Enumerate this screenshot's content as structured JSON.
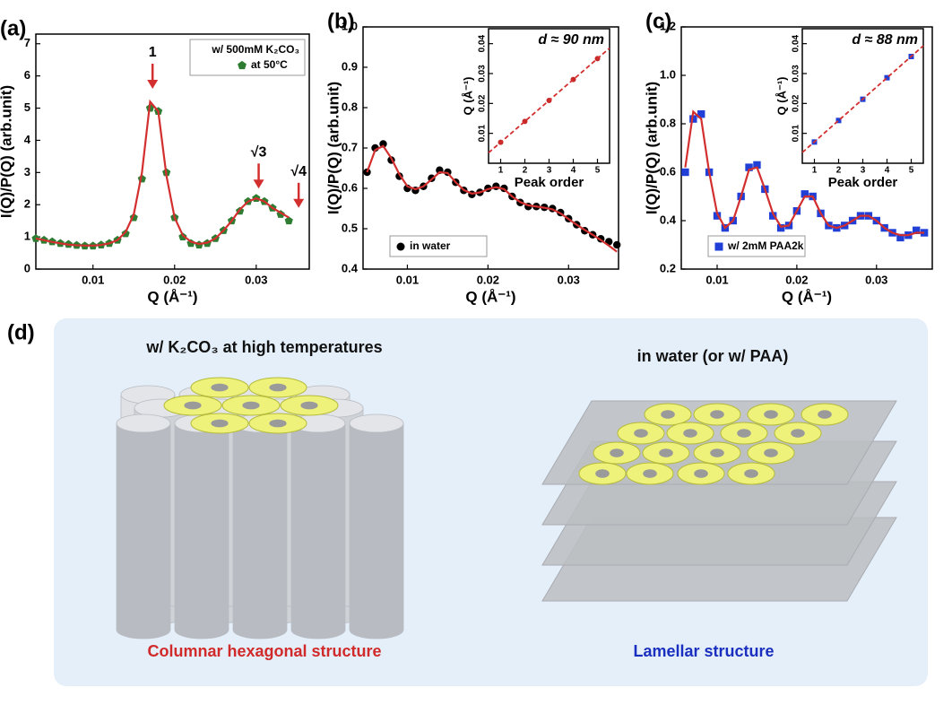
{
  "chart_data": [
    {
      "type": "scatter",
      "label": "(a)",
      "xlabel": "Q (Å⁻¹)",
      "ylabel": "I(Q)/P(Q) (arb.unit)",
      "xlim": [
        0.003,
        0.0365
      ],
      "xticks": [
        0.01,
        0.02,
        0.03
      ],
      "ylim": [
        0,
        7.3
      ],
      "yticks": [
        0,
        1,
        2,
        3,
        4,
        5,
        6,
        7
      ],
      "legend_title": "w/ 500mM K₂CO₃",
      "legend": "upper right",
      "x": [
        0.003,
        0.004,
        0.005,
        0.006,
        0.007,
        0.008,
        0.009,
        0.01,
        0.011,
        0.012,
        0.013,
        0.014,
        0.015,
        0.016,
        0.017,
        0.018,
        0.019,
        0.02,
        0.021,
        0.022,
        0.023,
        0.024,
        0.025,
        0.026,
        0.027,
        0.028,
        0.029,
        0.03,
        0.031,
        0.032,
        0.033,
        0.034
      ],
      "series": [
        {
          "name": "at 50°C",
          "color": "#2e7d32",
          "marker": "pentagon",
          "values": [
            0.95,
            0.9,
            0.85,
            0.8,
            0.77,
            0.74,
            0.72,
            0.72,
            0.75,
            0.8,
            0.9,
            1.1,
            1.6,
            2.8,
            5.0,
            4.9,
            3.0,
            1.6,
            1.0,
            0.8,
            0.75,
            0.8,
            0.95,
            1.2,
            1.5,
            1.8,
            2.1,
            2.2,
            2.1,
            1.9,
            1.7,
            1.5
          ]
        },
        {
          "color": "#d32f2f",
          "style": "line",
          "values": [
            0.95,
            0.9,
            0.84,
            0.8,
            0.76,
            0.74,
            0.73,
            0.73,
            0.75,
            0.8,
            0.9,
            1.15,
            1.7,
            3.0,
            5.2,
            4.9,
            2.9,
            1.6,
            1.05,
            0.85,
            0.78,
            0.82,
            0.95,
            1.2,
            1.5,
            1.85,
            2.1,
            2.2,
            2.1,
            1.9,
            1.75,
            1.6
          ]
        }
      ],
      "annotation_color": "#d32f2f",
      "annotations": [
        {
          "text": "1",
          "x": 0.0173,
          "y": 5.6
        },
        {
          "text": "√3",
          "x": 0.0303,
          "y": 2.5
        },
        {
          "text": "√4",
          "x": 0.0352,
          "y": 1.9
        }
      ]
    },
    {
      "type": "scatter",
      "label": "(b)",
      "xlabel": "Q (Å⁻¹)",
      "ylabel": "I(Q)/P(Q) (arb.unit)",
      "xlim": [
        0.0045,
        0.0362
      ],
      "xticks": [
        0.01,
        0.02,
        0.03
      ],
      "ylim": [
        0.4,
        1.0
      ],
      "yticks": [
        0.4,
        0.5,
        0.6,
        0.7,
        0.8,
        0.9,
        {
          "value": 1,
          "label": "1.0"
        }
      ],
      "legend": "lower left",
      "x": [
        0.005,
        0.006,
        0.007,
        0.008,
        0.009,
        0.01,
        0.011,
        0.012,
        0.013,
        0.014,
        0.015,
        0.016,
        0.017,
        0.018,
        0.019,
        0.02,
        0.021,
        0.022,
        0.023,
        0.024,
        0.025,
        0.026,
        0.027,
        0.028,
        0.029,
        0.03,
        0.031,
        0.032,
        0.033,
        0.034,
        0.035,
        0.036
      ],
      "series": [
        {
          "name": "in water",
          "color": "#000000",
          "marker": "circle",
          "values": [
            0.64,
            0.7,
            0.71,
            0.67,
            0.63,
            0.6,
            0.595,
            0.605,
            0.625,
            0.645,
            0.64,
            0.615,
            0.595,
            0.585,
            0.59,
            0.6,
            0.605,
            0.6,
            0.58,
            0.565,
            0.555,
            0.555,
            0.553,
            0.55,
            0.54,
            0.525,
            0.51,
            0.495,
            0.485,
            0.475,
            0.468,
            0.46
          ]
        },
        {
          "color": "#d32f2f",
          "style": "line",
          "values": [
            0.64,
            0.695,
            0.705,
            0.675,
            0.635,
            0.605,
            0.598,
            0.605,
            0.622,
            0.64,
            0.638,
            0.615,
            0.596,
            0.587,
            0.59,
            0.598,
            0.603,
            0.598,
            0.58,
            0.566,
            0.558,
            0.555,
            0.552,
            0.548,
            0.538,
            0.524,
            0.51,
            0.497,
            0.485,
            0.472,
            0.458,
            0.443
          ]
        }
      ]
    },
    {
      "type": "scatter",
      "inset": true,
      "title": "d ≈ 90 nm",
      "xlabel": "Peak order",
      "ylabel": "Q (Å⁻¹)",
      "xlim": [
        0.5,
        5.5
      ],
      "xticks": [
        1,
        2,
        3,
        4,
        5
      ],
      "ylim": [
        0,
        0.045
      ],
      "yticks": [
        0.01,
        0.02,
        0.03,
        0.04
      ],
      "x": [
        1,
        2,
        3,
        4,
        5
      ],
      "series": [
        {
          "color": "#d32f2f",
          "style": "line",
          "dash": true,
          "x": [
            0.5,
            5.5
          ],
          "values": [
            0.0035,
            0.0385
          ]
        },
        {
          "color": "#c62828",
          "marker": "circle",
          "values": [
            0.007,
            0.014,
            0.021,
            0.028,
            0.035
          ]
        }
      ]
    },
    {
      "type": "scatter",
      "label": "(c)",
      "xlabel": "Q (Å⁻¹)",
      "ylabel": "I(Q)/P(Q) (arb.unit)",
      "xlim": [
        0.0055,
        0.037
      ],
      "xticks": [
        0.01,
        0.02,
        0.03
      ],
      "ylim": [
        0.2,
        1.2
      ],
      "yticks": [
        0.2,
        0.4,
        0.6,
        0.8,
        {
          "value": 1,
          "label": "1.0"
        },
        1.2
      ],
      "legend": "lower left",
      "x": [
        0.006,
        0.007,
        0.008,
        0.009,
        0.01,
        0.011,
        0.012,
        0.013,
        0.014,
        0.015,
        0.016,
        0.017,
        0.018,
        0.019,
        0.02,
        0.021,
        0.022,
        0.023,
        0.024,
        0.025,
        0.026,
        0.027,
        0.028,
        0.029,
        0.03,
        0.031,
        0.032,
        0.033,
        0.034,
        0.035,
        0.036
      ],
      "series": [
        {
          "name": "w/ 2mM PAA2k",
          "color": "#1f3fd6",
          "marker": "square",
          "values": [
            0.6,
            0.82,
            0.84,
            0.6,
            0.42,
            0.37,
            0.4,
            0.5,
            0.62,
            0.63,
            0.53,
            0.42,
            0.37,
            0.38,
            0.44,
            0.51,
            0.5,
            0.43,
            0.38,
            0.37,
            0.38,
            0.4,
            0.42,
            0.42,
            0.4,
            0.37,
            0.35,
            0.33,
            0.34,
            0.36,
            0.35
          ]
        },
        {
          "color": "#d32f2f",
          "style": "line",
          "values": [
            0.62,
            0.85,
            0.82,
            0.6,
            0.43,
            0.37,
            0.4,
            0.5,
            0.61,
            0.62,
            0.53,
            0.43,
            0.375,
            0.38,
            0.44,
            0.5,
            0.5,
            0.43,
            0.38,
            0.37,
            0.38,
            0.4,
            0.42,
            0.42,
            0.4,
            0.37,
            0.35,
            0.34,
            0.34,
            0.35,
            0.35
          ]
        }
      ]
    },
    {
      "type": "scatter",
      "inset": true,
      "title": "d ≈ 88 nm",
      "xlabel": "Peak order",
      "ylabel": "Q (Å⁻¹)",
      "xlim": [
        0.5,
        5.5
      ],
      "xticks": [
        1,
        2,
        3,
        4,
        5
      ],
      "ylim": [
        0,
        0.045
      ],
      "yticks": [
        0.01,
        0.02,
        0.03,
        0.04
      ],
      "x": [
        1,
        2,
        3,
        4,
        5
      ],
      "series": [
        {
          "color": "#d32f2f",
          "style": "line",
          "dash": true,
          "x": [
            0.5,
            5.5
          ],
          "values": [
            0.0036,
            0.0393
          ]
        },
        {
          "color": "#1f3fd6",
          "marker": "square",
          "values": [
            0.0071,
            0.0143,
            0.0214,
            0.0286,
            0.0357
          ]
        }
      ]
    }
  ],
  "diagram": {
    "label": "(d)",
    "left": {
      "title": "w/ K₂CO₃ at high temperatures",
      "caption": "Columnar hexagonal structure"
    },
    "right": {
      "title": "in water (or w/ PAA)",
      "caption": "Lamellar structure"
    }
  }
}
